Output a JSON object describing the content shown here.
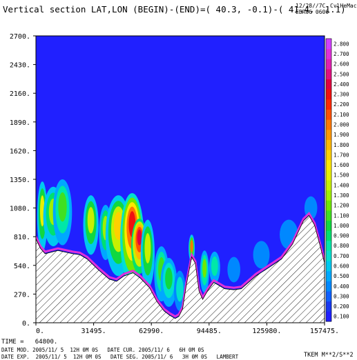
{
  "header": {
    "title": "Vertical section LAT,LON (BEGIN)-(END)=( 40.3, -0.1)-( 41.4,  1.1)",
    "code": "12/28//7C",
    "model": "CvlHeMac",
    "exp": "EBR06 0600"
  },
  "footer": {
    "time": "TIME =   64800.",
    "line1": "DATE MOD. 2005/11/ 5  12H 0M 0S   DATE CUR. 2005/11/ 6   6H 0M 0S",
    "line2": "DATE EXP.  2005/11/ 5  12H 0M 0S   DATE SEG. 2005/11/ 6   3H 0M 0S   LAMBERT",
    "field": "TKEM M**2/S**2"
  },
  "chart_data": {
    "type": "heatmap",
    "title": "Vertical section LAT,LON (BEGIN)-(END)=( 40.3, -0.1)-( 41.4,  1.1)",
    "xlabel": "",
    "ylabel": "",
    "xlim": [
      0,
      157475
    ],
    "ylim": [
      0,
      2700
    ],
    "x_ticks": [
      "0.",
      "31495.",
      "62990.",
      "94485.",
      "125980.",
      "157475."
    ],
    "y_ticks": [
      "0.",
      "270.",
      "540.",
      "810.",
      "1080.",
      "1350.",
      "1620.",
      "1890.",
      "2160.",
      "2430.",
      "2700."
    ],
    "colorbar": {
      "label": "TKEM M**2/S**2",
      "levels": [
        "0.100",
        "0.200",
        "0.300",
        "0.400",
        "0.500",
        "0.600",
        "0.700",
        "0.800",
        "0.900",
        "1.000",
        "1.100",
        "1.200",
        "1.300",
        "1.400",
        "1.500",
        "1.600",
        "1.700",
        "1.800",
        "1.900",
        "2.000",
        "2.100",
        "2.200",
        "2.300",
        "2.400",
        "2.500",
        "2.600",
        "2.700",
        "2.800"
      ],
      "colors": [
        "#2020ff",
        "#1838f0",
        "#1060ff",
        "#0088ff",
        "#00a8ff",
        "#00c8f0",
        "#00e0d0",
        "#00e8a8",
        "#00e070",
        "#10d840",
        "#40e020",
        "#70e800",
        "#a0f000",
        "#c8f000",
        "#e8f000",
        "#ffe800",
        "#ffd000",
        "#ffb800",
        "#ff9800",
        "#ff7800",
        "#ff5000",
        "#ff2800",
        "#f01010",
        "#e00040",
        "#e01080",
        "#e020b0",
        "#e030d8",
        "#d040ff"
      ]
    },
    "background_color": "#2020ff",
    "terrain_profile": [
      {
        "x": 0,
        "z": 790
      },
      {
        "x": 2500,
        "z": 700
      },
      {
        "x": 5000,
        "z": 650
      },
      {
        "x": 12000,
        "z": 680
      },
      {
        "x": 20000,
        "z": 650
      },
      {
        "x": 24000,
        "z": 640
      },
      {
        "x": 28000,
        "z": 600
      },
      {
        "x": 34000,
        "z": 500
      },
      {
        "x": 40000,
        "z": 410
      },
      {
        "x": 44000,
        "z": 390
      },
      {
        "x": 48000,
        "z": 440
      },
      {
        "x": 53000,
        "z": 470
      },
      {
        "x": 57000,
        "z": 420
      },
      {
        "x": 62000,
        "z": 330
      },
      {
        "x": 66000,
        "z": 200
      },
      {
        "x": 70000,
        "z": 110
      },
      {
        "x": 73000,
        "z": 70
      },
      {
        "x": 76000,
        "z": 40
      },
      {
        "x": 78000,
        "z": 60
      },
      {
        "x": 80000,
        "z": 130
      },
      {
        "x": 82000,
        "z": 350
      },
      {
        "x": 85000,
        "z": 620
      },
      {
        "x": 87000,
        "z": 560
      },
      {
        "x": 89000,
        "z": 300
      },
      {
        "x": 91000,
        "z": 220
      },
      {
        "x": 94000,
        "z": 310
      },
      {
        "x": 97000,
        "z": 380
      },
      {
        "x": 99000,
        "z": 360
      },
      {
        "x": 103000,
        "z": 320
      },
      {
        "x": 108000,
        "z": 310
      },
      {
        "x": 112000,
        "z": 320
      },
      {
        "x": 120000,
        "z": 440
      },
      {
        "x": 128000,
        "z": 530
      },
      {
        "x": 134000,
        "z": 600
      },
      {
        "x": 140000,
        "z": 740
      },
      {
        "x": 146000,
        "z": 960
      },
      {
        "x": 149000,
        "z": 1010
      },
      {
        "x": 152000,
        "z": 920
      },
      {
        "x": 155000,
        "z": 730
      },
      {
        "x": 157475,
        "z": 560
      }
    ]
  }
}
